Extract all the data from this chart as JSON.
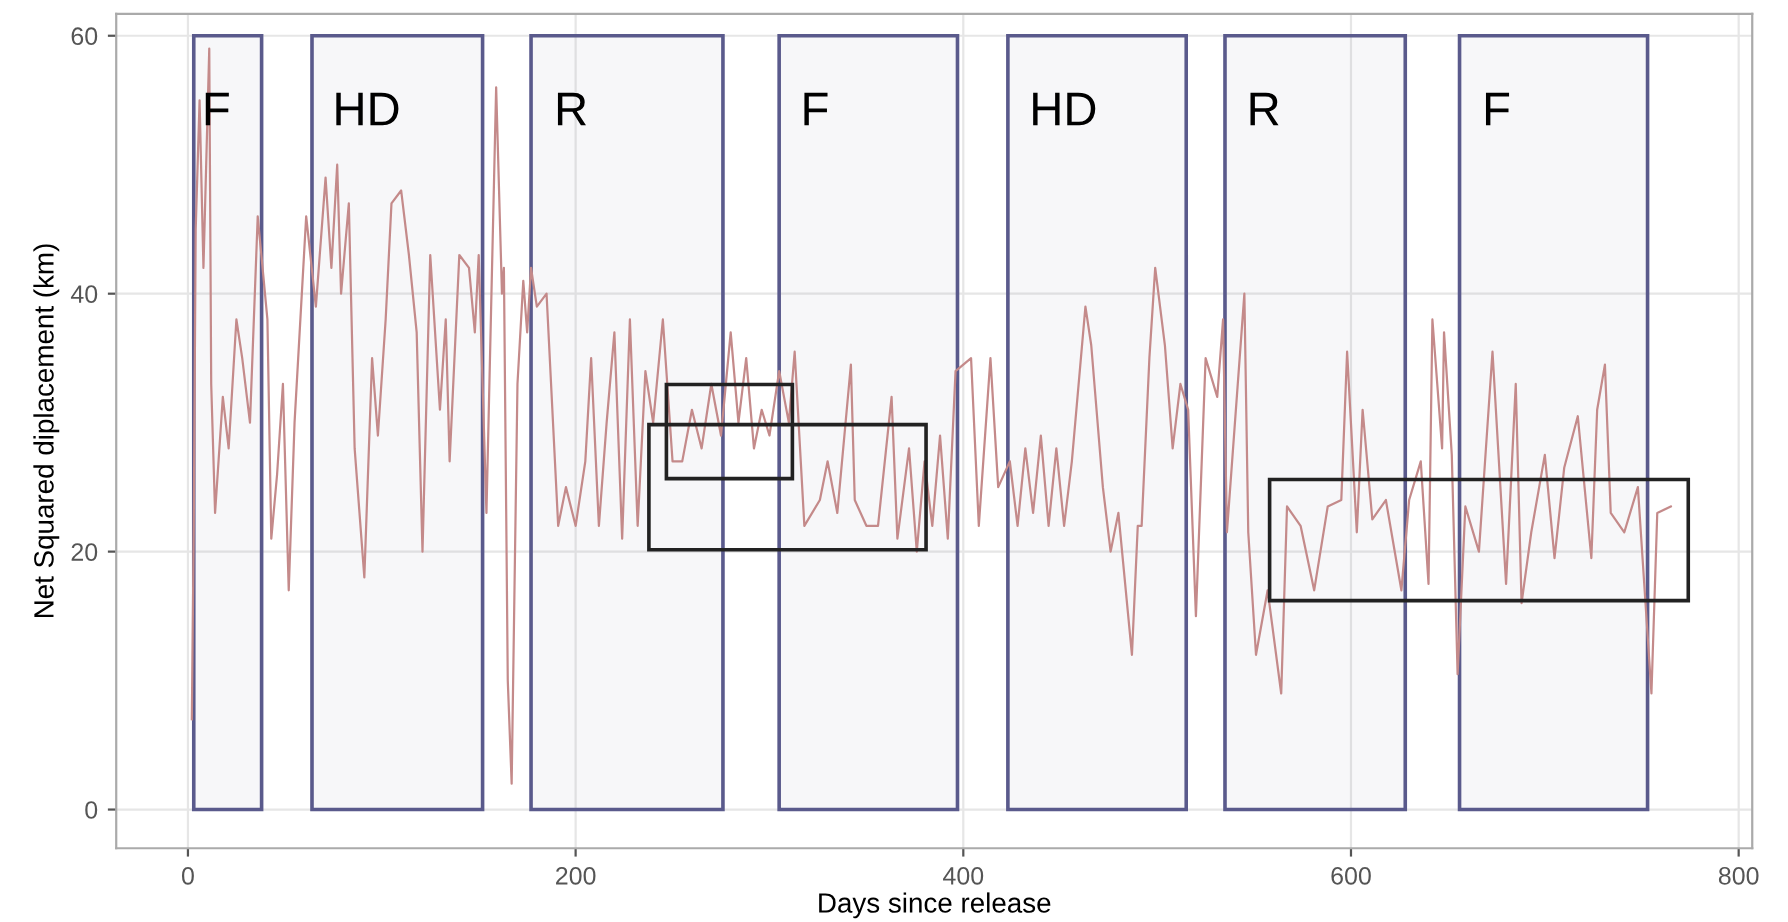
{
  "chart_data": {
    "type": "line",
    "xlabel": "Days since release",
    "ylabel": "Net Squared diplacement (km)",
    "xlim": [
      -37,
      807
    ],
    "ylim": [
      -3,
      61.7
    ],
    "xticks": [
      0,
      200,
      400,
      600,
      800
    ],
    "yticks": [
      0,
      20,
      40,
      60
    ],
    "grid": true,
    "marker": "none",
    "line_style": "solid",
    "series": [
      {
        "color": "#c48a8a",
        "x": [
          2,
          3,
          4,
          6,
          8,
          11,
          12,
          14,
          18,
          21,
          25,
          28,
          32,
          36,
          41,
          43,
          46,
          49,
          52,
          55,
          61,
          66,
          71,
          74,
          77,
          79,
          83,
          86,
          91,
          95,
          98,
          102,
          105,
          110,
          114,
          118,
          121,
          125,
          130,
          133,
          135,
          140,
          145,
          148,
          150,
          154,
          159,
          162,
          163,
          165,
          167,
          170,
          173,
          175,
          177,
          180,
          185,
          191,
          195,
          200,
          205,
          208,
          212,
          216,
          220,
          224,
          228,
          232,
          236,
          240,
          245,
          250,
          255,
          260,
          265,
          270,
          275,
          280,
          284,
          288,
          292,
          296,
          300,
          305,
          310,
          313,
          318,
          326,
          330,
          335,
          342,
          344,
          350,
          356,
          363,
          366,
          372,
          376,
          380,
          384,
          388,
          392,
          396,
          404,
          408,
          414,
          418,
          424,
          428,
          432,
          436,
          440,
          444,
          448,
          452,
          456,
          463,
          466,
          472,
          476,
          480,
          487,
          490,
          492,
          496,
          499,
          504,
          508,
          512,
          516,
          520,
          525,
          531,
          534,
          536,
          545,
          547,
          551,
          557,
          564,
          567,
          574,
          581,
          588,
          595,
          598,
          603,
          606,
          611,
          618,
          626,
          630,
          636,
          640,
          642,
          647,
          648,
          652,
          655,
          659,
          666,
          673,
          680,
          685,
          688,
          693,
          700,
          705,
          710,
          717,
          724,
          727,
          731,
          734,
          741,
          748,
          755,
          758,
          765
        ],
        "values": [
          7,
          22,
          45,
          55,
          42,
          59,
          33,
          23,
          32,
          28,
          38,
          35,
          30,
          46,
          38,
          21,
          26,
          33,
          17,
          30,
          46,
          39,
          49,
          42,
          50,
          40,
          47,
          28,
          18,
          35,
          29,
          38,
          47,
          48,
          43,
          37,
          20,
          43,
          31,
          38,
          27,
          43,
          42,
          37,
          43,
          23,
          56,
          40,
          42,
          10,
          2,
          33,
          41,
          37,
          42,
          39,
          40,
          22,
          25,
          22,
          27,
          35,
          22,
          30,
          37,
          21,
          38,
          22,
          34,
          30,
          38,
          27,
          27,
          31,
          28,
          33,
          29,
          37,
          30,
          35,
          28,
          31,
          29,
          34,
          30,
          35.5,
          22,
          24,
          27,
          23,
          34.5,
          24,
          22,
          22,
          32,
          21,
          28,
          20,
          27,
          22,
          29,
          21,
          34,
          35,
          22,
          35,
          25,
          27,
          22,
          28,
          23,
          29,
          22,
          28,
          22,
          27,
          39,
          36,
          25,
          20,
          23,
          12,
          22,
          22,
          35,
          42,
          36,
          28,
          33,
          31,
          15,
          35,
          32,
          38,
          21.5,
          40,
          21.5,
          12,
          17,
          9,
          23.5,
          22,
          17,
          23.5,
          24,
          35.5,
          21.5,
          31,
          22.5,
          24,
          17,
          24,
          27,
          17.5,
          38,
          28,
          37,
          27.5,
          10.5,
          23.5,
          20,
          35.5,
          17.5,
          33,
          16,
          21.5,
          27.5,
          19.5,
          26.5,
          30.5,
          19.5,
          31,
          34.5,
          23,
          21.5,
          25,
          9,
          23,
          23.5
        ]
      }
    ],
    "bands": [
      {
        "axis": "x",
        "from": 3,
        "to": 38,
        "label": "F",
        "color": "#5a5a8c"
      },
      {
        "axis": "x",
        "from": 64,
        "to": 152,
        "label": "HD",
        "color": "#5a5a8c"
      },
      {
        "axis": "x",
        "from": 177,
        "to": 276,
        "label": "R",
        "color": "#5a5a8c"
      },
      {
        "axis": "x",
        "from": 305,
        "to": 397,
        "label": "F",
        "color": "#5a5a8c"
      },
      {
        "axis": "x",
        "from": 423,
        "to": 515,
        "label": "HD",
        "color": "#5a5a8c"
      },
      {
        "axis": "x",
        "from": 535,
        "to": 628,
        "label": "R",
        "color": "#5a5a8c"
      },
      {
        "axis": "x",
        "from": 656,
        "to": 753,
        "label": "F",
        "color": "#5a5a8c"
      }
    ]
  }
}
